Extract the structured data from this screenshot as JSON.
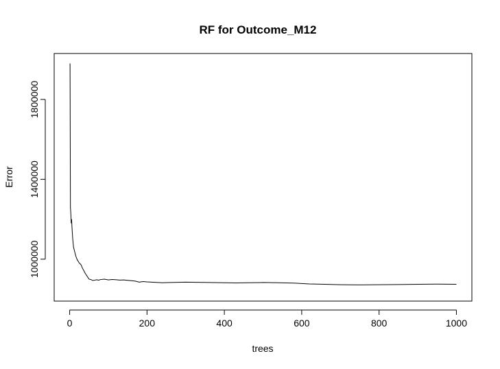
{
  "chart_data": {
    "type": "line",
    "title": "RF for Outcome_M12",
    "xlabel": "trees",
    "ylabel": "Error",
    "xlim": [
      -40,
      1040
    ],
    "ylim": [
      790000,
      2030000
    ],
    "x_ticks": [
      0,
      200,
      400,
      600,
      800,
      1000
    ],
    "x_tick_labels": [
      "0",
      "200",
      "400",
      "600",
      "800",
      "1000"
    ],
    "y_ticks": [
      1000000,
      1400000,
      1800000
    ],
    "y_tick_labels": [
      "1000000",
      "1400000",
      "1800000"
    ],
    "grid": false,
    "series": [
      {
        "x": [
          1,
          2,
          3,
          4,
          5,
          6,
          7,
          8,
          9,
          10,
          12,
          14,
          16,
          18,
          20,
          22,
          25,
          28,
          30,
          33,
          36,
          40,
          45,
          50,
          55,
          60,
          65,
          70,
          75,
          80,
          90,
          100,
          110,
          120,
          130,
          140,
          150,
          160,
          170,
          180,
          190,
          200,
          220,
          240,
          260,
          280,
          300,
          330,
          360,
          400,
          430,
          460,
          500,
          540,
          580,
          620,
          660,
          700,
          750,
          800,
          850,
          900,
          950,
          1000
        ],
        "y": [
          1980000,
          1260000,
          1230000,
          1180000,
          1200000,
          1160000,
          1130000,
          1100000,
          1080000,
          1060000,
          1045000,
          1030000,
          1015000,
          1005000,
          995000,
          990000,
          980000,
          975000,
          970000,
          955000,
          945000,
          930000,
          915000,
          900000,
          898000,
          893000,
          895000,
          897000,
          895000,
          898000,
          900000,
          896000,
          898000,
          897000,
          895000,
          896000,
          894000,
          892000,
          890000,
          885000,
          888000,
          886000,
          884000,
          882000,
          883000,
          884000,
          885000,
          884000,
          883000,
          882000,
          881000,
          882000,
          883000,
          882000,
          880000,
          876000,
          874000,
          872000,
          871000,
          872000,
          873000,
          874000,
          875000,
          874000
        ]
      }
    ]
  }
}
